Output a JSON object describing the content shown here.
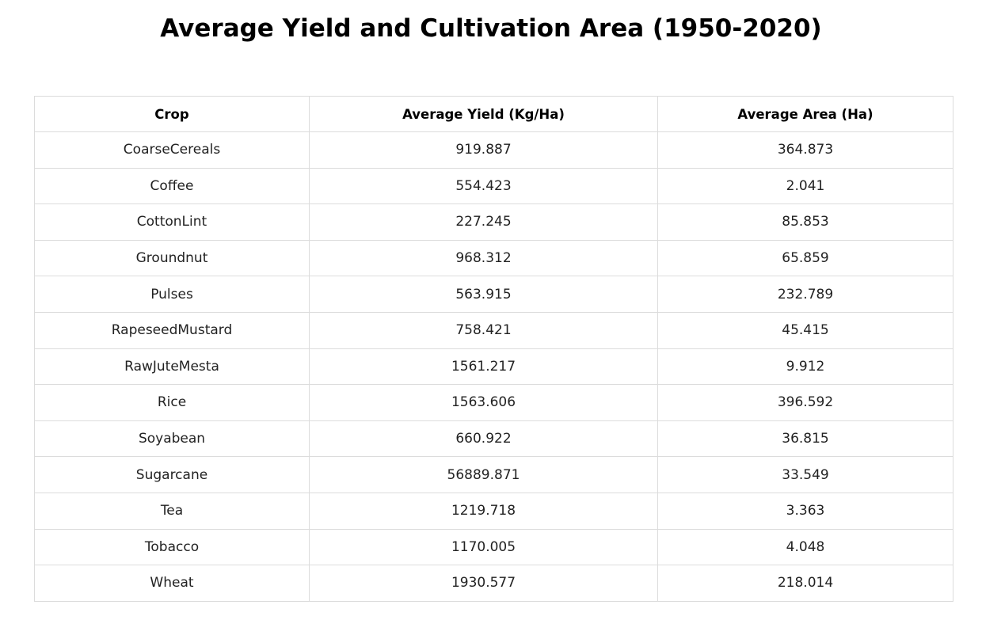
{
  "chart_data": {
    "type": "table",
    "title": "Average Yield and Cultivation Area (1950-2020)",
    "columns": [
      "Crop",
      "Average Yield (Kg/Ha)",
      "Average Area (Ha)"
    ],
    "rows": [
      [
        "CoarseCereals",
        "919.887",
        "364.873"
      ],
      [
        "Coffee",
        "554.423",
        "2.041"
      ],
      [
        "CottonLint",
        "227.245",
        "85.853"
      ],
      [
        "Groundnut",
        "968.312",
        "65.859"
      ],
      [
        "Pulses",
        "563.915",
        "232.789"
      ],
      [
        "RapeseedMustard",
        "758.421",
        "45.415"
      ],
      [
        "RawJuteMesta",
        "1561.217",
        "9.912"
      ],
      [
        "Rice",
        "1563.606",
        "396.592"
      ],
      [
        "Soyabean",
        "660.922",
        "36.815"
      ],
      [
        "Sugarcane",
        "56889.871",
        "33.549"
      ],
      [
        "Tea",
        "1219.718",
        "3.363"
      ],
      [
        "Tobacco",
        "1170.005",
        "4.048"
      ],
      [
        "Wheat",
        "1930.577",
        "218.014"
      ]
    ]
  }
}
